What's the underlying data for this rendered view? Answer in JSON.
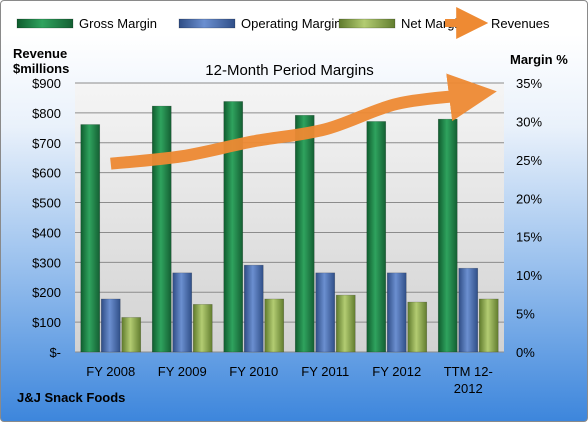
{
  "chart_data": {
    "type": "bar",
    "title": "12-Month Period Margins",
    "left_axis_title": [
      "Revenue",
      "$millions"
    ],
    "right_axis_title": "Margin %",
    "footer_label": "J&J Snack Foods",
    "categories": [
      [
        "FY 2008"
      ],
      [
        "FY 2009"
      ],
      [
        "FY 2010"
      ],
      [
        "FY 2011"
      ],
      [
        "FY 2012"
      ],
      [
        "TTM 12-",
        "2012"
      ]
    ],
    "left_axis": {
      "min": 0,
      "max": 900,
      "step": 100,
      "tick_labels": [
        "$-",
        "$100",
        "$200",
        "$300",
        "$400",
        "$500",
        "$600",
        "$700",
        "$800",
        "$900"
      ]
    },
    "right_axis": {
      "min": 0,
      "max": 35,
      "step": 5,
      "tick_labels": [
        "0%",
        "5%",
        "10%",
        "15%",
        "20%",
        "25%",
        "30%",
        "35%"
      ]
    },
    "series": [
      {
        "name": "Gross Margin",
        "kind": "bar",
        "axis": "right",
        "color": "#1e8a4a",
        "values": [
          29.6,
          32.0,
          32.6,
          30.8,
          30.0,
          30.3
        ]
      },
      {
        "name": "Operating Margin",
        "kind": "bar",
        "axis": "right",
        "color": "#4a72b8",
        "values": [
          6.9,
          10.3,
          11.3,
          10.3,
          10.3,
          10.9
        ]
      },
      {
        "name": "Net Margin",
        "kind": "bar",
        "axis": "right",
        "color": "#8aab4a",
        "values": [
          4.5,
          6.2,
          6.9,
          7.4,
          6.5,
          6.9
        ]
      },
      {
        "name": "Revenues",
        "kind": "line",
        "axis": "left",
        "color": "#ee8a33",
        "values": [
          630,
          655,
          705,
          745,
          830,
          860
        ]
      }
    ],
    "grid": true,
    "legend": "top"
  }
}
